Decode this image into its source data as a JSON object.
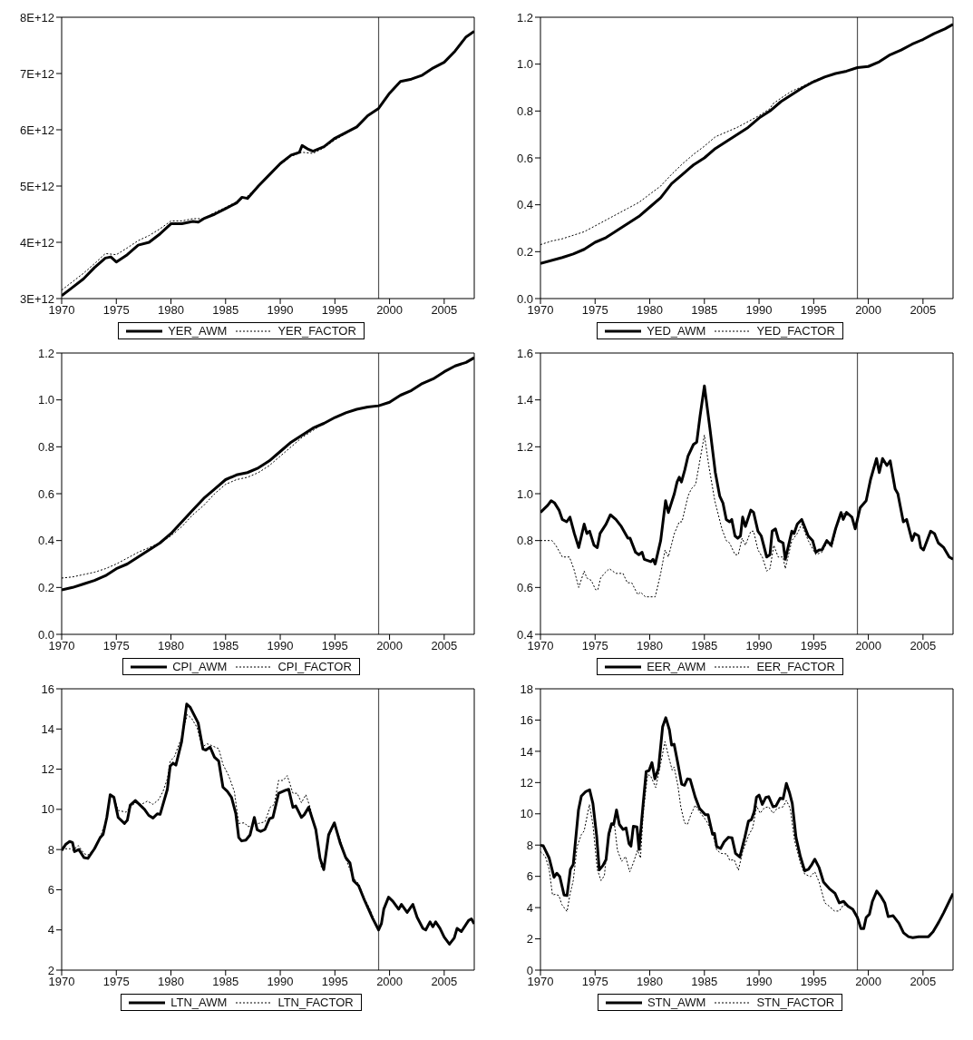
{
  "chart_data": [
    {
      "type": "line",
      "xlim": [
        1970,
        2007.75
      ],
      "xticks": [
        1970,
        1975,
        1980,
        1985,
        1990,
        1995,
        2000,
        2005
      ],
      "ylim": [
        3000000000000.0,
        8000000000000.0
      ],
      "yticks": [
        {
          "value": 3000000000000.0,
          "label": "3E+12"
        },
        {
          "value": 4000000000000.0,
          "label": "4E+12"
        },
        {
          "value": 5000000000000.0,
          "label": "5E+12"
        },
        {
          "value": 6000000000000.0,
          "label": "6E+12"
        },
        {
          "value": 7000000000000.0,
          "label": "7E+12"
        },
        {
          "value": 8000000000000.0,
          "label": "8E+12"
        }
      ],
      "ref_lines": [
        {
          "axis": "x",
          "value": 1999,
          "color": "#555555"
        }
      ],
      "legend": "bottom",
      "series": [
        {
          "name": "YER_AWM",
          "color": "#000000",
          "line_style": "solid",
          "x": [
            1970,
            1971,
            1972,
            1973,
            1974,
            1974.5,
            1975,
            1976,
            1977,
            1978,
            1979,
            1980,
            1981,
            1982,
            1982.5,
            1983,
            1984,
            1985,
            1986,
            1986.5,
            1987,
            1988,
            1989,
            1990,
            1991,
            1991.75,
            1992,
            1992.5,
            1993,
            1994,
            1995,
            1996,
            1997,
            1998,
            1999,
            2000,
            2001,
            2002,
            2003,
            2004,
            2005,
            2006,
            2007,
            2007.75
          ],
          "values": [
            3050000000000.0,
            3200000000000.0,
            3350000000000.0,
            3550000000000.0,
            3720000000000.0,
            3740000000000.0,
            3650000000000.0,
            3780000000000.0,
            3950000000000.0,
            4000000000000.0,
            4150000000000.0,
            4330000000000.0,
            4330000000000.0,
            4370000000000.0,
            4360000000000.0,
            4420000000000.0,
            4500000000000.0,
            4600000000000.0,
            4700000000000.0,
            4800000000000.0,
            4780000000000.0,
            5000000000000.0,
            5200000000000.0,
            5400000000000.0,
            5550000000000.0,
            5600000000000.0,
            5720000000000.0,
            5660000000000.0,
            5620000000000.0,
            5700000000000.0,
            5850000000000.0,
            5950000000000.0,
            6050000000000.0,
            6250000000000.0,
            6380000000000.0,
            6650000000000.0,
            6860000000000.0,
            6900000000000.0,
            6970000000000.0,
            7100000000000.0,
            7200000000000.0,
            7400000000000.0,
            7650000000000.0,
            7750000000000.0
          ]
        },
        {
          "name": "YER_FACTOR",
          "color": "#000000",
          "line_style": "dotted",
          "x": [
            1970,
            1971,
            1972,
            1973,
            1974,
            1975,
            1976,
            1977,
            1978,
            1979,
            1980,
            1981,
            1982,
            1983,
            1984,
            1985,
            1986,
            1987,
            1988,
            1989,
            1990,
            1991,
            1992,
            1993,
            1994,
            1995,
            1996,
            1997,
            1998,
            1999
          ],
          "values": [
            3150000000000.0,
            3300000000000.0,
            3450000000000.0,
            3620000000000.0,
            3800000000000.0,
            3780000000000.0,
            3900000000000.0,
            4030000000000.0,
            4120000000000.0,
            4240000000000.0,
            4380000000000.0,
            4380000000000.0,
            4420000000000.0,
            4420000000000.0,
            4530000000000.0,
            4620000000000.0,
            4720000000000.0,
            4820000000000.0,
            5000000000000.0,
            5180000000000.0,
            5380000000000.0,
            5530000000000.0,
            5600000000000.0,
            5580000000000.0,
            5680000000000.0,
            5820000000000.0,
            5930000000000.0,
            6050000000000.0,
            6250000000000.0,
            6380000000000.0
          ]
        }
      ]
    },
    {
      "type": "line",
      "xlim": [
        1970,
        2007.75
      ],
      "xticks": [
        1970,
        1975,
        1980,
        1985,
        1990,
        1995,
        2000,
        2005
      ],
      "ylim": [
        0,
        1.2
      ],
      "yticks": [
        {
          "value": 0,
          "label": "0.0"
        },
        0.2,
        0.4,
        0.6,
        0.8,
        {
          "value": 1,
          "label": "1.0"
        },
        1.2
      ],
      "ref_lines": [
        {
          "axis": "x",
          "value": 1999,
          "color": "#555555"
        }
      ],
      "legend": "bottom",
      "series": [
        {
          "name": "YED_AWM",
          "color": "#000000",
          "line_style": "solid",
          "x": [
            1970,
            1972,
            1973,
            1974,
            1975,
            1976,
            1977,
            1978,
            1979,
            1980,
            1981,
            1982,
            1983,
            1984,
            1985,
            1986,
            1987,
            1988,
            1989,
            1990,
            1991,
            1992,
            1993,
            1994,
            1995,
            1996,
            1997,
            1998,
            1999,
            2000,
            2001,
            2002,
            2003,
            2004,
            2005,
            2006,
            2007,
            2007.75
          ],
          "values": [
            0.15,
            0.175,
            0.19,
            0.21,
            0.24,
            0.26,
            0.29,
            0.32,
            0.35,
            0.39,
            0.43,
            0.49,
            0.53,
            0.57,
            0.6,
            0.64,
            0.67,
            0.7,
            0.73,
            0.77,
            0.8,
            0.84,
            0.87,
            0.9,
            0.925,
            0.945,
            0.96,
            0.97,
            0.985,
            0.99,
            1.01,
            1.04,
            1.06,
            1.085,
            1.105,
            1.13,
            1.15,
            1.17
          ]
        },
        {
          "name": "YED_FACTOR",
          "color": "#000000",
          "line_style": "dotted",
          "x": [
            1970,
            1971,
            1972,
            1973,
            1974,
            1975,
            1976,
            1977,
            1978,
            1979,
            1980,
            1981,
            1982,
            1983,
            1984,
            1985,
            1986,
            1987,
            1988,
            1989,
            1990,
            1991,
            1991.25,
            1992,
            1993,
            1994,
            1995,
            1996,
            1997,
            1998,
            1999
          ],
          "values": [
            0.23,
            0.245,
            0.255,
            0.27,
            0.285,
            0.31,
            0.335,
            0.36,
            0.385,
            0.41,
            0.445,
            0.48,
            0.53,
            0.575,
            0.615,
            0.65,
            0.69,
            0.71,
            0.73,
            0.755,
            0.78,
            0.81,
            0.83,
            0.855,
            0.885,
            0.905,
            0.93,
            0.945,
            0.96,
            0.97,
            0.985
          ]
        }
      ]
    },
    {
      "type": "line",
      "xlim": [
        1970,
        2007.75
      ],
      "xticks": [
        1970,
        1975,
        1980,
        1985,
        1990,
        1995,
        2000,
        2005
      ],
      "ylim": [
        0,
        1.2
      ],
      "yticks": [
        {
          "value": 0,
          "label": "0.0"
        },
        0.2,
        0.4,
        0.6,
        0.8,
        {
          "value": 1,
          "label": "1.0"
        },
        1.2
      ],
      "ref_lines": [
        {
          "axis": "x",
          "value": 1999,
          "color": "#555555"
        }
      ],
      "legend": "bottom",
      "series": [
        {
          "name": "CPI_AWM",
          "color": "#000000",
          "line_style": "solid",
          "x": [
            1970,
            1971,
            1972,
            1973,
            1974,
            1975,
            1976,
            1977,
            1978,
            1979,
            1980,
            1981,
            1982,
            1983,
            1984,
            1985,
            1986,
            1987,
            1988,
            1989,
            1990,
            1991,
            1992,
            1993,
            1994,
            1995,
            1996,
            1997,
            1998,
            1999,
            2000,
            2001,
            2002,
            2003,
            2004,
            2005,
            2006,
            2007,
            2007.75
          ],
          "values": [
            0.19,
            0.2,
            0.215,
            0.23,
            0.25,
            0.28,
            0.3,
            0.33,
            0.36,
            0.39,
            0.43,
            0.48,
            0.53,
            0.58,
            0.62,
            0.66,
            0.68,
            0.69,
            0.71,
            0.74,
            0.78,
            0.82,
            0.85,
            0.88,
            0.9,
            0.925,
            0.945,
            0.96,
            0.97,
            0.975,
            0.99,
            1.02,
            1.04,
            1.07,
            1.09,
            1.12,
            1.145,
            1.16,
            1.18
          ]
        },
        {
          "name": "CPI_FACTOR",
          "color": "#000000",
          "line_style": "dotted",
          "x": [
            1970,
            1971,
            1972,
            1973,
            1974,
            1975,
            1976,
            1977,
            1978,
            1979,
            1980,
            1981,
            1982,
            1983,
            1984,
            1985,
            1986,
            1987,
            1988,
            1989,
            1990,
            1991,
            1992,
            1993,
            1994,
            1995,
            1996,
            1997,
            1998,
            1999
          ],
          "values": [
            0.24,
            0.245,
            0.255,
            0.265,
            0.28,
            0.3,
            0.325,
            0.35,
            0.37,
            0.39,
            0.42,
            0.46,
            0.51,
            0.55,
            0.6,
            0.64,
            0.66,
            0.67,
            0.69,
            0.72,
            0.76,
            0.8,
            0.84,
            0.87,
            0.9,
            0.925,
            0.945,
            0.96,
            0.97,
            0.975
          ]
        }
      ]
    },
    {
      "type": "line",
      "xlim": [
        1970,
        2007.75
      ],
      "xticks": [
        1970,
        1975,
        1980,
        1985,
        1990,
        1995,
        2000,
        2005
      ],
      "ylim": [
        0.4,
        1.6
      ],
      "yticks": [
        0.4,
        0.6,
        0.8,
        {
          "value": 1,
          "label": "1.0"
        },
        1.2,
        1.4,
        1.6
      ],
      "ref_lines": [
        {
          "axis": "x",
          "value": 1999,
          "color": "#555555"
        }
      ],
      "legend": "bottom",
      "series": [
        {
          "name": "EER_AWM",
          "color": "#000000",
          "line_style": "solid",
          "x": [
            1970,
            1970.66,
            1970.98,
            1971.3,
            1971.7,
            1972,
            1972.4,
            1972.7,
            1973.1,
            1973.5,
            1974,
            1974.25,
            1974.5,
            1974.9,
            1975.2,
            1975.45,
            1976,
            1976.4,
            1976.9,
            1977.4,
            1978,
            1978.2,
            1978.7,
            1979,
            1979.3,
            1979.5,
            1980.1,
            1980.3,
            1980.5,
            1981,
            1981.45,
            1981.7,
            1982.25,
            1982.5,
            1982.7,
            1982.9,
            1983.2,
            1983.5,
            1984,
            1984.3,
            1984.6,
            1985,
            1985.5,
            1986,
            1986.4,
            1986.7,
            1987,
            1987.3,
            1987.5,
            1987.8,
            1988.05,
            1988.3,
            1988.5,
            1988.75,
            1989.25,
            1989.5,
            1989.9,
            1990.2,
            1990.7,
            1991,
            1991.2,
            1991.5,
            1991.8,
            1992.2,
            1992.4,
            1993,
            1993.2,
            1993.5,
            1993.9,
            1994.5,
            1994.9,
            1995.2,
            1995.5,
            1995.75,
            1996.2,
            1996.6,
            1997,
            1997.5,
            1997.7,
            1998,
            1998.5,
            1998.8,
            1999.25,
            1999.8,
            2000.2,
            2000.75,
            2001,
            2001.3,
            2001.7,
            2002,
            2002.45,
            2002.7,
            2003.2,
            2003.5,
            2004,
            2004.25,
            2004.6,
            2004.8,
            2005.05,
            2005.7,
            2006.05,
            2006.4,
            2006.9,
            2007.4,
            2007.75
          ],
          "values": [
            0.92,
            0.95,
            0.97,
            0.96,
            0.93,
            0.89,
            0.88,
            0.9,
            0.83,
            0.77,
            0.87,
            0.83,
            0.84,
            0.78,
            0.77,
            0.83,
            0.87,
            0.91,
            0.89,
            0.86,
            0.81,
            0.81,
            0.75,
            0.74,
            0.75,
            0.72,
            0.71,
            0.72,
            0.7,
            0.8,
            0.97,
            0.92,
            1.0,
            1.05,
            1.07,
            1.05,
            1.1,
            1.16,
            1.21,
            1.22,
            1.33,
            1.46,
            1.28,
            1.09,
            0.99,
            0.96,
            0.89,
            0.88,
            0.89,
            0.82,
            0.81,
            0.82,
            0.9,
            0.86,
            0.93,
            0.92,
            0.84,
            0.82,
            0.73,
            0.74,
            0.84,
            0.85,
            0.8,
            0.79,
            0.72,
            0.84,
            0.83,
            0.87,
            0.89,
            0.82,
            0.8,
            0.75,
            0.76,
            0.76,
            0.8,
            0.78,
            0.85,
            0.92,
            0.89,
            0.92,
            0.9,
            0.85,
            0.94,
            0.97,
            1.06,
            1.15,
            1.09,
            1.15,
            1.12,
            1.14,
            1.02,
            1.0,
            0.88,
            0.89,
            0.8,
            0.83,
            0.82,
            0.77,
            0.76,
            0.84,
            0.83,
            0.79,
            0.77,
            0.73,
            0.72
          ]
        },
        {
          "name": "EER_FACTOR",
          "color": "#000000",
          "line_style": "dotted",
          "x": [
            1970,
            1971.05,
            1971.4,
            1972,
            1972.65,
            1973.05,
            1973.5,
            1974,
            1974.25,
            1974.65,
            1975.05,
            1975.25,
            1975.5,
            1975.85,
            1976.3,
            1976.9,
            1977.55,
            1977.95,
            1978.35,
            1978.9,
            1979.15,
            1979.6,
            1979.95,
            1980.5,
            1981,
            1981.4,
            1981.7,
            1982.25,
            1982.7,
            1982.95,
            1983.5,
            1983.8,
            1984.2,
            1985,
            1985.4,
            1985.95,
            1986.6,
            1987,
            1987.3,
            1987.8,
            1988.1,
            1988.45,
            1988.75,
            1989.25,
            1989.5,
            1989.9,
            1990.3,
            1990.7,
            1991,
            1991.35,
            1991.75,
            1992.2,
            1992.4,
            1993,
            1993.5,
            1993.9,
            1994.5,
            1995.2,
            1995.75,
            1996.2,
            1996.65,
            1997,
            1997.5,
            1998,
            1998.5,
            1998.8
          ],
          "values": [
            0.8,
            0.8,
            0.78,
            0.73,
            0.73,
            0.68,
            0.6,
            0.67,
            0.64,
            0.63,
            0.59,
            0.59,
            0.64,
            0.66,
            0.68,
            0.66,
            0.66,
            0.62,
            0.62,
            0.57,
            0.58,
            0.56,
            0.56,
            0.56,
            0.66,
            0.76,
            0.73,
            0.83,
            0.88,
            0.88,
            0.99,
            1.02,
            1.04,
            1.25,
            1.12,
            0.97,
            0.85,
            0.8,
            0.79,
            0.74,
            0.74,
            0.81,
            0.78,
            0.84,
            0.84,
            0.76,
            0.73,
            0.67,
            0.68,
            0.78,
            0.73,
            0.73,
            0.68,
            0.8,
            0.83,
            0.87,
            0.8,
            0.74,
            0.75,
            0.79,
            0.77,
            0.84,
            0.91,
            0.92,
            0.9,
            0.85
          ]
        }
      ]
    },
    {
      "type": "line",
      "xlim": [
        1970,
        2007.75
      ],
      "xticks": [
        1970,
        1975,
        1980,
        1985,
        1990,
        1995,
        2000,
        2005
      ],
      "ylim": [
        2,
        16
      ],
      "yticks": [
        2,
        4,
        6,
        8,
        10,
        12,
        14,
        16
      ],
      "ref_lines": [
        {
          "axis": "x",
          "value": 1999,
          "color": "#555555"
        }
      ],
      "legend": "bottom",
      "series": [
        {
          "name": "LTN_AWM",
          "color": "#000000",
          "line_style": "solid",
          "x": [
            1970,
            1970.39,
            1970.73,
            1970.99,
            1971.18,
            1971.57,
            1972.04,
            1972.4,
            1973,
            1973.53,
            1973.79,
            1974.13,
            1974.44,
            1974.78,
            1975.17,
            1975.75,
            1976.01,
            1976.27,
            1976.74,
            1977.58,
            1977.97,
            1978.36,
            1978.75,
            1979.01,
            1979.67,
            1979.93,
            1980.19,
            1980.45,
            1980.97,
            1981.44,
            1981.76,
            1982.49,
            1982.93,
            1983.19,
            1983.58,
            1983.98,
            1984.37,
            1984.76,
            1985.15,
            1985.54,
            1985.93,
            1986.2,
            1986.46,
            1986.85,
            1987.24,
            1987.63,
            1987.89,
            1988.21,
            1988.6,
            1989.02,
            1989.33,
            1989.85,
            1990.51,
            1990.77,
            1991.16,
            1991.42,
            1991.94,
            1992.2,
            1992.6,
            1993.25,
            1993.64,
            1993.98,
            1994.43,
            1994.95,
            1995.47,
            1995.99,
            1996.38,
            1996.7,
            1997.17,
            1997.69,
            1998.08,
            1998.47,
            1999,
            1999.26,
            1999.47,
            1999.91,
            2000.3,
            2000.83,
            2001.09,
            2001.61,
            2002.13,
            2002.52,
            2003.05,
            2003.31,
            2003.7,
            2003.96,
            2004.22,
            2004.61,
            2005,
            2005.48,
            2005.92,
            2006.18,
            2006.57,
            2007.23,
            2007.49,
            2007.75
          ],
          "values": [
            7.96,
            8.27,
            8.4,
            8.35,
            7.9,
            8.0,
            7.6,
            7.56,
            8.04,
            8.6,
            8.75,
            9.6,
            10.73,
            10.6,
            9.6,
            9.3,
            9.46,
            10.2,
            10.44,
            10.0,
            9.7,
            9.57,
            9.78,
            9.75,
            11.0,
            12.15,
            12.3,
            12.2,
            13.35,
            15.24,
            15.08,
            14.3,
            13.0,
            12.95,
            13.1,
            12.6,
            12.4,
            11.1,
            10.9,
            10.6,
            9.8,
            8.6,
            8.43,
            8.47,
            8.73,
            9.6,
            8.98,
            8.9,
            9.0,
            9.54,
            9.6,
            10.8,
            10.96,
            11.0,
            10.1,
            10.17,
            9.6,
            9.74,
            10.1,
            9.0,
            7.56,
            7.0,
            8.75,
            9.33,
            8.35,
            7.6,
            7.33,
            6.45,
            6.2,
            5.5,
            5.03,
            4.56,
            4.0,
            4.32,
            5.03,
            5.63,
            5.43,
            5.03,
            5.27,
            4.87,
            5.27,
            4.63,
            4.08,
            4.0,
            4.4,
            4.16,
            4.4,
            4.08,
            3.64,
            3.29,
            3.6,
            4.08,
            3.92,
            4.47,
            4.55,
            4.3
          ]
        },
        {
          "name": "LTN_FACTOR",
          "color": "#000000",
          "line_style": "dotted",
          "x": [
            1970,
            1970.78,
            1971.04,
            1971.52,
            1972.04,
            1972.4,
            1973,
            1973.53,
            1974.13,
            1974.44,
            1974.78,
            1975.17,
            1975.88,
            1976.27,
            1976.74,
            1977.31,
            1977.84,
            1978.36,
            1978.88,
            1979.27,
            1979.67,
            1979.93,
            1980.32,
            1980.97,
            1981.49,
            1981.89,
            1982.41,
            1982.85,
            1983.32,
            1983.71,
            1984.37,
            1984.76,
            1985.28,
            1985.8,
            1986.2,
            1986.72,
            1987.03,
            1987.5,
            1988.02,
            1988.6,
            1989.07,
            1989.46,
            1989.85,
            1990.25,
            1990.64,
            1991.16,
            1991.55,
            1991.94,
            1992.34,
            1992.73,
            1993.25,
            1993.77,
            1994.03,
            1994.43,
            1994.95,
            1995.47,
            1995.99,
            1996.65,
            1997.17,
            1997.69,
            1998.21,
            1998.87,
            1999
          ],
          "values": [
            8.04,
            8.04,
            7.96,
            8.2,
            7.8,
            7.72,
            8.04,
            8.6,
            9.6,
            10.7,
            10.6,
            9.95,
            9.86,
            10.1,
            10.33,
            10.25,
            10.41,
            10.25,
            10.49,
            10.89,
            11.52,
            12.39,
            12.63,
            13.58,
            14.72,
            14.53,
            14.05,
            13.1,
            13.26,
            13.18,
            13.02,
            12.23,
            11.68,
            10.89,
            9.3,
            9.33,
            9.15,
            9.15,
            9.3,
            9.38,
            10.1,
            10.25,
            11.44,
            11.44,
            11.68,
            10.8,
            10.8,
            10.33,
            10.73,
            10.1,
            8.9,
            7.09,
            7.25,
            8.6,
            9.3,
            8.51,
            7.56,
            6.61,
            6.3,
            5.58,
            5.03,
            4.08,
            4.0
          ]
        }
      ]
    },
    {
      "type": "line",
      "xlim": [
        1970,
        2007.75
      ],
      "xticks": [
        1970,
        1975,
        1980,
        1985,
        1990,
        1995,
        2000,
        2005
      ],
      "ylim": [
        0,
        18
      ],
      "yticks": [
        0,
        2,
        4,
        6,
        8,
        10,
        12,
        14,
        16,
        18
      ],
      "ref_lines": [
        {
          "axis": "x",
          "value": 1999,
          "color": "#555555"
        }
      ],
      "legend": "bottom",
      "series": [
        {
          "name": "STN_AWM",
          "color": "#000000",
          "line_style": "solid",
          "x": [
            1970,
            1970.26,
            1970.8,
            1971.24,
            1971.5,
            1971.77,
            1972.16,
            1972.43,
            1972.74,
            1973,
            1973.48,
            1973.74,
            1974.14,
            1974.5,
            1974.8,
            1975.14,
            1975.38,
            1975.72,
            1976,
            1976.25,
            1976.5,
            1976.7,
            1976.96,
            1977.22,
            1977.56,
            1977.83,
            1978.1,
            1978.28,
            1978.5,
            1978.83,
            1979.02,
            1979.4,
            1979.67,
            1979.94,
            1980.2,
            1980.47,
            1980.8,
            1981.18,
            1981.47,
            1981.8,
            1982,
            1982.23,
            1982.58,
            1982.92,
            1983.18,
            1983.45,
            1983.7,
            1984.16,
            1984.55,
            1985.08,
            1985.34,
            1985.74,
            1985.92,
            1986.13,
            1986.48,
            1986.8,
            1987.2,
            1987.53,
            1987.85,
            1988.24,
            1988.7,
            1989.03,
            1989.3,
            1989.56,
            1989.77,
            1990,
            1990.3,
            1990.62,
            1990.88,
            1991.28,
            1991.54,
            1991.93,
            1992.2,
            1992.5,
            1992.78,
            1993.04,
            1993.38,
            1993.78,
            1994.18,
            1994.52,
            1994.83,
            1995.1,
            1995.5,
            1995.9,
            1996.42,
            1996.95,
            1997.34,
            1997.74,
            1998.13,
            1998.58,
            1999,
            1999.32,
            1999.58,
            1999.8,
            2000.1,
            2000.37,
            2000.77,
            2001.16,
            2001.5,
            2001.82,
            2002.27,
            2002.8,
            2003.22,
            2003.67,
            2004.06,
            2004.6,
            2005.12,
            2005.5,
            2005.92,
            2006.44,
            2006.9,
            2007.44,
            2007.75
          ],
          "values": [
            7.99,
            7.95,
            7.17,
            5.94,
            6.2,
            5.98,
            4.81,
            4.77,
            6.45,
            6.76,
            10.25,
            11.13,
            11.42,
            11.54,
            10.66,
            8.6,
            6.41,
            6.7,
            7.07,
            8.7,
            9.36,
            9.32,
            10.25,
            9.32,
            9.0,
            9.1,
            8.1,
            7.93,
            9.2,
            9.16,
            7.72,
            10.66,
            12.7,
            12.77,
            13.28,
            12.24,
            12.9,
            15.58,
            16.15,
            15.37,
            14.4,
            14.45,
            13.2,
            11.9,
            11.83,
            12.24,
            12.2,
            11.07,
            10.35,
            9.94,
            9.94,
            8.7,
            8.75,
            7.9,
            7.78,
            8.2,
            8.5,
            8.46,
            7.47,
            7.23,
            8.5,
            9.53,
            9.63,
            10.14,
            11.07,
            11.2,
            10.6,
            11.05,
            11.1,
            10.45,
            10.5,
            11.0,
            10.96,
            11.95,
            11.37,
            10.66,
            8.5,
            7.27,
            6.35,
            6.45,
            6.76,
            7.1,
            6.55,
            5.63,
            5.22,
            4.91,
            4.3,
            4.4,
            4.09,
            3.89,
            3.37,
            2.66,
            2.66,
            3.37,
            3.58,
            4.4,
            5.06,
            4.71,
            4.3,
            3.42,
            3.48,
            3.0,
            2.39,
            2.14,
            2.08,
            2.14,
            2.14,
            2.14,
            2.45,
            3.07,
            3.68,
            4.46,
            4.9
          ]
        },
        {
          "name": "STN_FACTOR",
          "color": "#000000",
          "line_style": "dotted",
          "x": [
            1970,
            1970.45,
            1970.8,
            1971.1,
            1971.37,
            1971.69,
            1971.95,
            1972.43,
            1972.69,
            1973,
            1973.35,
            1973.74,
            1974,
            1974.48,
            1974.8,
            1975.2,
            1975.54,
            1975.85,
            1976.1,
            1976.5,
            1976.77,
            1977.04,
            1977.43,
            1977.78,
            1978.17,
            1978.5,
            1978.88,
            1979.15,
            1979.4,
            1979.8,
            1980.07,
            1980.55,
            1981,
            1981.39,
            1981.7,
            1982.05,
            1982.23,
            1982.58,
            1982.84,
            1983.18,
            1983.45,
            1983.76,
            1984.16,
            1984.55,
            1985.2,
            1985.74,
            1986.13,
            1986.53,
            1987.06,
            1987.32,
            1987.72,
            1988.11,
            1988.5,
            1989.03,
            1989.43,
            1989.77,
            1990.1,
            1990.5,
            1990.88,
            1991.28,
            1991.67,
            1992.2,
            1992.5,
            1992.85,
            1993.25,
            1993.78,
            1994.18,
            1994.7,
            1995.1,
            1995.5,
            1996.02,
            1996.42,
            1996.9,
            1997.34,
            1997.74,
            1998.13,
            1998.58,
            1999
          ],
          "values": [
            7.58,
            7.27,
            6.45,
            4.81,
            4.85,
            4.77,
            4.2,
            3.74,
            4.81,
            5.73,
            7.9,
            8.67,
            8.91,
            10.6,
            9.32,
            6.45,
            5.73,
            6.04,
            7.89,
            9.22,
            9.32,
            7.68,
            6.96,
            7.27,
            6.29,
            6.86,
            7.68,
            7.17,
            10.04,
            12.5,
            12.44,
            11.68,
            13.22,
            14.62,
            13.73,
            12.8,
            13.0,
            11.78,
            10.45,
            9.42,
            9.32,
            9.94,
            10.55,
            10.14,
            9.53,
            8.8,
            7.68,
            7.47,
            7.43,
            7.02,
            7.07,
            6.39,
            7.58,
            8.6,
            9.12,
            10.5,
            10.04,
            10.39,
            10.45,
            10.04,
            10.35,
            10.45,
            10.86,
            10.35,
            8.3,
            6.86,
            6.14,
            5.98,
            6.29,
            5.63,
            4.3,
            4.09,
            3.78,
            3.78,
            4.2,
            4.05,
            3.89,
            3.37
          ]
        }
      ]
    }
  ]
}
